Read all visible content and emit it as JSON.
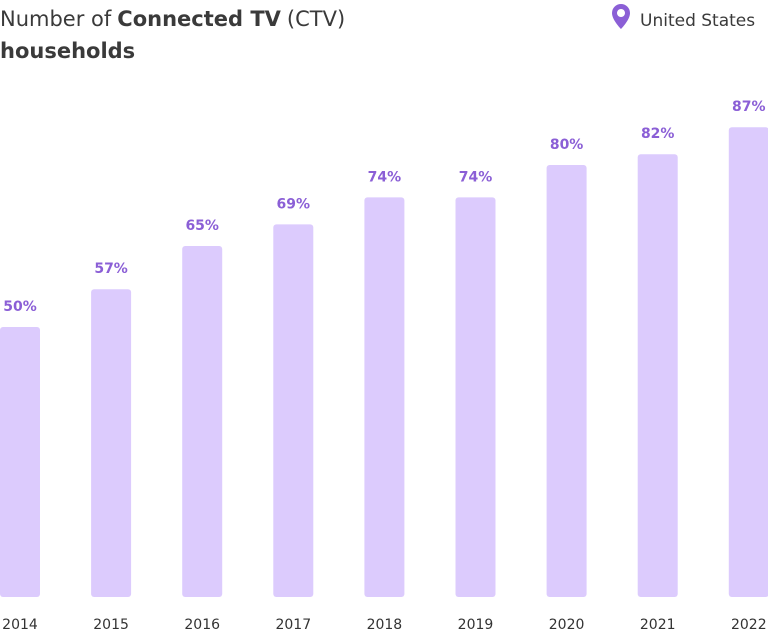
{
  "chart_data": {
    "type": "bar",
    "title_parts": [
      {
        "text": "Number of",
        "bold": false
      },
      {
        "text": "Connected TV",
        "bold": true
      },
      {
        "text": "(CTV)",
        "bold": false
      },
      {
        "text": "households",
        "bold": true,
        "new_line": true
      }
    ],
    "location": "United States",
    "categories": [
      "2014",
      "2015",
      "2016",
      "2017",
      "2018",
      "2019",
      "2020",
      "2021",
      "2022"
    ],
    "values": [
      50,
      57,
      65,
      69,
      74,
      74,
      80,
      82,
      87
    ],
    "value_labels": [
      "50%",
      "57%",
      "65%",
      "69%",
      "74%",
      "74%",
      "80%",
      "82%",
      "87%"
    ],
    "color": "#dccbfd",
    "label_color": "#8b5fd6"
  }
}
